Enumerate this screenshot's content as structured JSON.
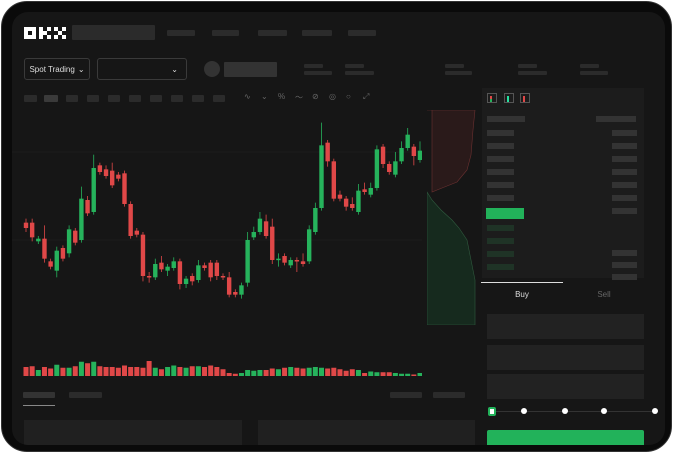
{
  "header": {
    "logo": "OKX",
    "nav_count": 5
  },
  "toolbar": {
    "market_selector": "Spot Trading",
    "dropdown_icon": "chevron-down-icon"
  },
  "order_form": {
    "tabs": [
      {
        "label": "Buy",
        "active": true
      },
      {
        "label": "Sell",
        "active": false
      }
    ],
    "slider_value_percent": 0,
    "slider_steps": [
      0,
      25,
      50,
      75,
      100
    ]
  },
  "colors": {
    "up": "#26b35c",
    "down": "#e04848",
    "accent": "#22b25a",
    "background": "#161616"
  },
  "chart_data": {
    "type": "candlestick",
    "title": "",
    "xlabel": "",
    "ylabel": "",
    "ylim": [
      30,
      180
    ],
    "grid": true,
    "candles": [
      [
        97,
        100,
        90,
        93
      ],
      [
        97,
        100,
        83,
        86
      ],
      [
        83,
        87,
        81,
        85
      ],
      [
        85,
        95,
        67,
        70
      ],
      [
        68,
        70,
        62,
        64
      ],
      [
        61,
        79,
        56,
        76
      ],
      [
        78,
        80,
        68,
        70
      ],
      [
        74,
        95,
        71,
        92
      ],
      [
        91,
        93,
        80,
        82
      ],
      [
        84,
        124,
        82,
        115
      ],
      [
        114,
        117,
        102,
        104
      ],
      [
        105,
        148,
        103,
        138
      ],
      [
        140,
        142,
        133,
        135
      ],
      [
        137,
        140,
        130,
        132
      ],
      [
        136,
        142,
        123,
        125
      ],
      [
        133,
        135,
        128,
        130
      ],
      [
        134,
        136,
        109,
        111
      ],
      [
        111,
        113,
        85,
        87
      ],
      [
        91,
        93,
        86,
        88
      ],
      [
        88,
        90,
        53,
        57
      ],
      [
        57,
        60,
        52,
        56
      ],
      [
        56,
        70,
        54,
        66
      ],
      [
        67,
        72,
        60,
        62
      ],
      [
        61,
        66,
        57,
        64
      ],
      [
        63,
        71,
        61,
        68
      ],
      [
        68,
        70,
        47,
        51
      ],
      [
        51,
        57,
        48,
        55
      ],
      [
        57,
        59,
        50,
        53
      ],
      [
        54,
        69,
        52,
        65
      ],
      [
        65,
        67,
        61,
        63
      ],
      [
        67,
        69,
        53,
        56
      ],
      [
        67,
        69,
        54,
        57
      ],
      [
        57,
        59,
        54,
        56
      ],
      [
        56,
        60,
        41,
        43
      ],
      [
        45,
        47,
        41,
        43
      ],
      [
        43,
        52,
        40,
        50
      ],
      [
        52,
        90,
        49,
        84
      ],
      [
        86,
        94,
        84,
        90
      ],
      [
        90,
        105,
        88,
        100
      ],
      [
        98,
        103,
        85,
        87
      ],
      [
        94,
        100,
        66,
        69
      ],
      [
        69,
        74,
        64,
        70
      ],
      [
        72,
        74,
        65,
        67
      ],
      [
        65,
        71,
        63,
        69
      ],
      [
        69,
        71,
        60,
        68
      ],
      [
        68,
        74,
        64,
        66
      ],
      [
        68,
        95,
        66,
        92
      ],
      [
        90,
        112,
        88,
        108
      ],
      [
        108,
        172,
        106,
        155
      ],
      [
        157,
        159,
        139,
        143
      ],
      [
        143,
        145,
        113,
        115
      ],
      [
        118,
        121,
        113,
        115
      ],
      [
        115,
        117,
        106,
        109
      ],
      [
        111,
        116,
        106,
        108
      ],
      [
        105,
        126,
        103,
        121
      ],
      [
        122,
        127,
        118,
        120
      ],
      [
        118,
        127,
        116,
        123
      ],
      [
        123,
        155,
        121,
        152
      ],
      [
        154,
        156,
        138,
        141
      ],
      [
        141,
        143,
        133,
        135
      ],
      [
        133,
        150,
        131,
        143
      ],
      [
        143,
        158,
        141,
        153
      ],
      [
        153,
        168,
        151,
        163
      ],
      [
        154,
        156,
        140,
        147
      ],
      [
        144,
        158,
        142,
        151
      ]
    ],
    "volume": [
      12,
      13,
      8,
      12,
      10,
      15,
      11,
      11,
      13,
      19,
      17,
      19,
      13,
      12,
      12,
      11,
      14,
      12,
      12,
      11,
      20,
      11,
      9,
      12,
      14,
      12,
      11,
      13,
      13,
      12,
      14,
      12,
      9,
      4,
      3,
      4,
      8,
      7,
      8,
      8,
      10,
      9,
      11,
      12,
      11,
      10,
      11,
      12,
      11,
      10,
      11,
      9,
      7,
      9,
      8,
      4,
      6,
      5,
      5,
      5,
      4,
      3,
      3,
      2,
      4
    ]
  }
}
